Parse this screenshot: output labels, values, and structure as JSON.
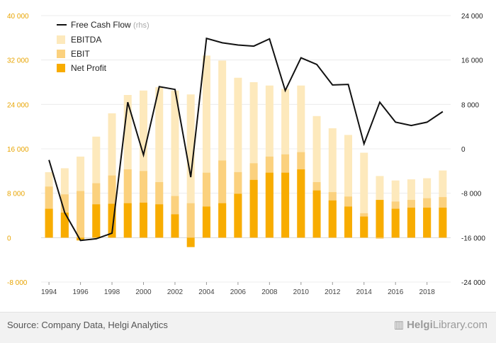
{
  "chart_data": {
    "type": "bar",
    "x": [
      1994,
      1995,
      1996,
      1997,
      1998,
      1999,
      2000,
      2001,
      2002,
      2003,
      2004,
      2005,
      2006,
      2007,
      2008,
      2009,
      2010,
      2011,
      2012,
      2013,
      2014,
      2015,
      2016,
      2017,
      2018,
      2019
    ],
    "x_tick_labels": [
      "1994",
      "1996",
      "1998",
      "2000",
      "2002",
      "2004",
      "2006",
      "2008",
      "2010",
      "2012",
      "2014",
      "2016",
      "2018"
    ],
    "y_left": {
      "ticks": [
        -8000,
        0,
        8000,
        16000,
        24000,
        32000,
        40000
      ],
      "tick_labels": [
        "-8 000",
        "0",
        "8 000",
        "16 000",
        "24 000",
        "32 000",
        "40 000"
      ],
      "range": [
        -8000,
        40000
      ]
    },
    "y_right": {
      "ticks": [
        -24000,
        -16000,
        -8000,
        0,
        8000,
        16000,
        24000
      ],
      "tick_labels": [
        "-24 000",
        "-16 000",
        "-8 000",
        "0",
        "8 000",
        "16 000",
        "24 000"
      ],
      "range": [
        -24000,
        24000
      ]
    },
    "series": [
      {
        "name": "EBITDA",
        "kind": "bar",
        "color": "#fde9bc",
        "values": [
          11800,
          12500,
          14600,
          18200,
          22400,
          25700,
          26500,
          27100,
          26500,
          25800,
          32800,
          31900,
          28800,
          28000,
          27400,
          26800,
          27400,
          21900,
          19700,
          18500,
          15300,
          11100,
          10300,
          10500,
          10700,
          12100
        ]
      },
      {
        "name": "EBIT",
        "kind": "bar",
        "color": "#fbd17e",
        "values": [
          9200,
          7800,
          8400,
          9800,
          11200,
          12300,
          12000,
          10000,
          7500,
          6200,
          11700,
          13900,
          11800,
          13400,
          14600,
          15000,
          15400,
          10000,
          8200,
          7400,
          4400,
          -200,
          6500,
          6800,
          7100,
          7300
        ]
      },
      {
        "name": "Net Profit",
        "kind": "bar",
        "color": "#f8ac00",
        "values": [
          5200,
          4500,
          -500,
          6000,
          6100,
          6200,
          6300,
          6000,
          4200,
          -1700,
          5600,
          6200,
          7900,
          10400,
          11700,
          11700,
          12300,
          8500,
          6700,
          5600,
          3800,
          6800,
          5200,
          5400,
          5400,
          5400
        ]
      },
      {
        "name": "Free Cash Flow",
        "axis_note": "(rhs)",
        "kind": "line",
        "axis": "right",
        "color": "#111111",
        "values": [
          -2000,
          -11500,
          -16500,
          -16200,
          -15200,
          8400,
          -1100,
          11200,
          10700,
          -5100,
          19900,
          19100,
          18700,
          18500,
          19800,
          10500,
          16400,
          15200,
          11500,
          11600,
          900,
          8400,
          4800,
          4200,
          4800,
          6700
        ]
      }
    ]
  },
  "source_text": "Source: Company Data, Helgi Analytics",
  "logo": {
    "icon": "helgi-logo-icon",
    "brand_bold": "Helgi",
    "brand_rest": "Library.com"
  }
}
